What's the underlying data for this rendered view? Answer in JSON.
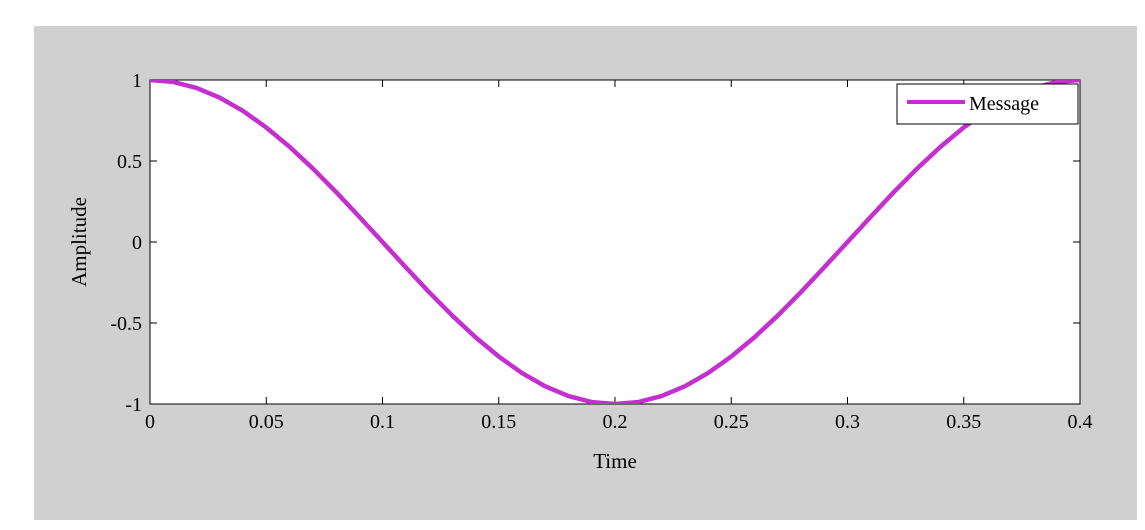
{
  "colors": {
    "figure_background": "#d0d0d0",
    "plot_background": "#ffffff",
    "series_line": "#c430d0",
    "axis": "#000000"
  },
  "chart_data": {
    "type": "line",
    "title": "",
    "xlabel": "Time",
    "ylabel": "Amplitude",
    "xlim": [
      0,
      0.4
    ],
    "ylim": [
      -1,
      1
    ],
    "xticks": [
      0,
      0.05,
      0.1,
      0.15,
      0.2,
      0.25,
      0.3,
      0.35,
      0.4
    ],
    "xtick_labels": [
      "0",
      "0.05",
      "0.1",
      "0.15",
      "0.2",
      "0.25",
      "0.3",
      "0.35",
      "0.4"
    ],
    "yticks": [
      1,
      0.5,
      0,
      -0.5,
      -1
    ],
    "ytick_labels": [
      "1",
      "0.5",
      "0",
      "-0.5",
      "-1"
    ],
    "grid": false,
    "legend_position": "top-right",
    "series": [
      {
        "name": "Message",
        "color": "#c430d0",
        "x": [
          0,
          0.01,
          0.02,
          0.03,
          0.04,
          0.05,
          0.06,
          0.07,
          0.08,
          0.09,
          0.1,
          0.11,
          0.12,
          0.13,
          0.14,
          0.15,
          0.16,
          0.17,
          0.18,
          0.19,
          0.2,
          0.21,
          0.22,
          0.23,
          0.24,
          0.25,
          0.26,
          0.27,
          0.28,
          0.29,
          0.3,
          0.31,
          0.32,
          0.33,
          0.34,
          0.35,
          0.36,
          0.37,
          0.38,
          0.39,
          0.4
        ],
        "y": [
          1,
          0.988,
          0.951,
          0.891,
          0.809,
          0.707,
          0.588,
          0.454,
          0.309,
          0.156,
          0,
          -0.156,
          -0.309,
          -0.454,
          -0.588,
          -0.707,
          -0.809,
          -0.891,
          -0.951,
          -0.988,
          -1,
          -0.988,
          -0.951,
          -0.891,
          -0.809,
          -0.707,
          -0.588,
          -0.454,
          -0.309,
          -0.156,
          0,
          0.156,
          0.309,
          0.454,
          0.588,
          0.707,
          0.809,
          0.891,
          0.951,
          0.988,
          1
        ]
      }
    ]
  }
}
